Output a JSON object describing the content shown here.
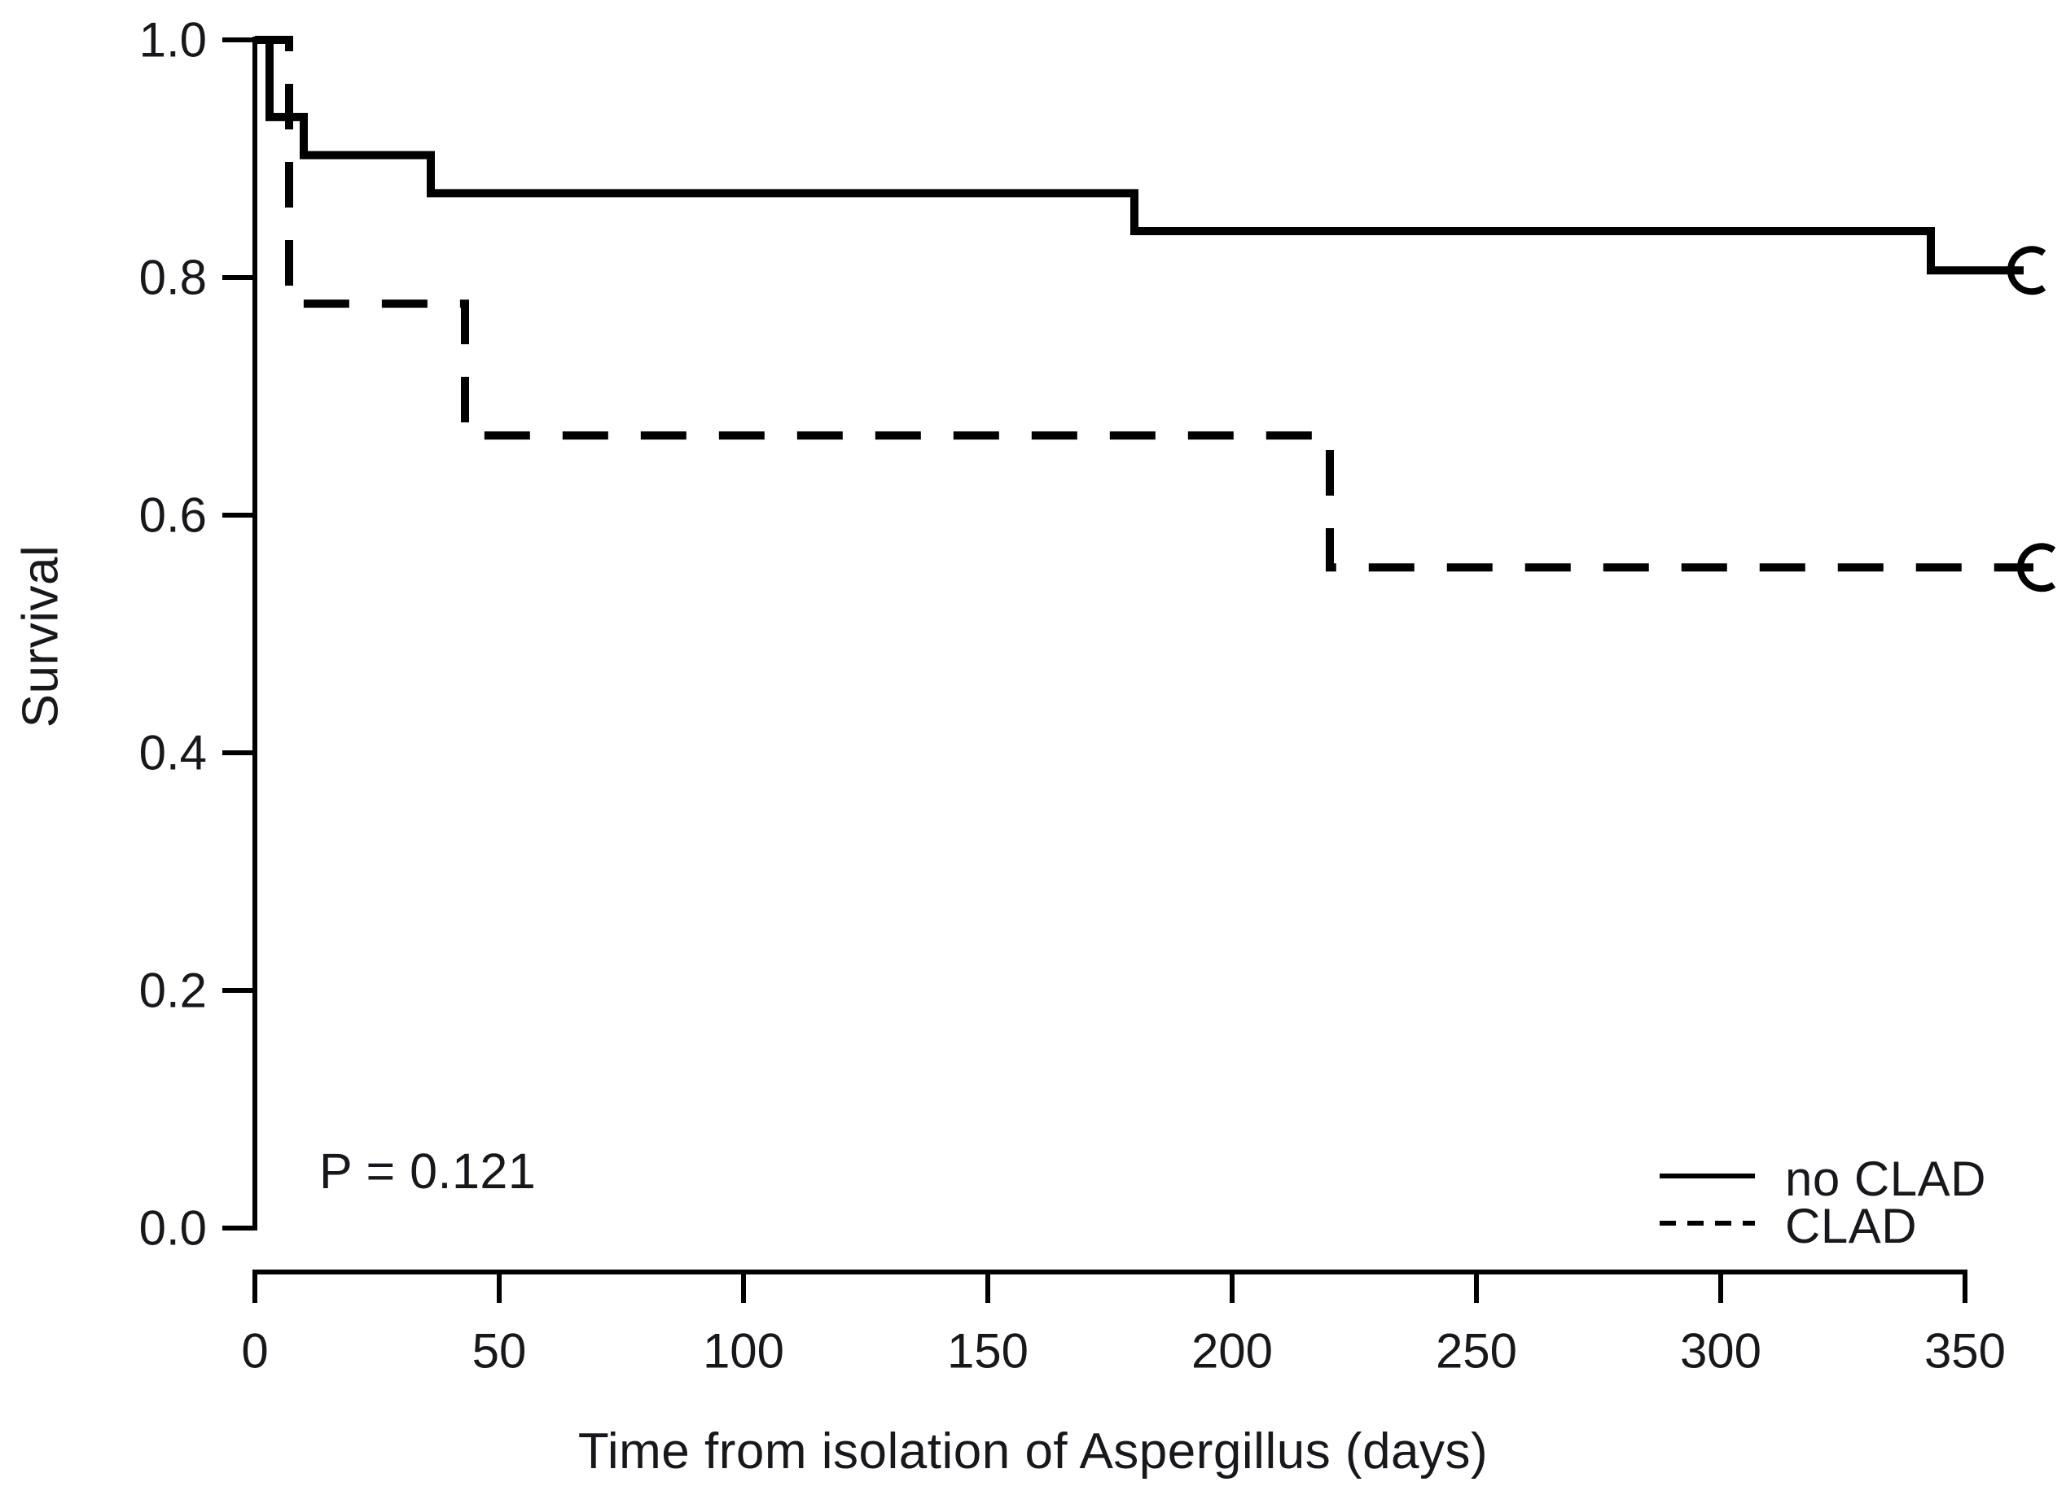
{
  "figure": {
    "background": "#ffffff",
    "line_color": "#000000",
    "text_color": "#17171c"
  },
  "annotation": {
    "p_value": "P = 0.121"
  },
  "legend": {
    "position": "bottom-right",
    "items": [
      {
        "label": "no CLAD",
        "line_style": "solid"
      },
      {
        "label": "CLAD",
        "line_style": "dashed"
      }
    ]
  },
  "chart_data": {
    "type": "line",
    "subtype": "kaplan-meier-step",
    "title": "",
    "xlabel": "Time from isolation of Aspergillus (days)",
    "ylabel": "Survival",
    "xlim": [
      0,
      350
    ],
    "ylim": [
      0.0,
      1.0
    ],
    "grid": false,
    "x_ticks": [
      {
        "value": 0,
        "label": "0"
      },
      {
        "value": 50,
        "label": "50"
      },
      {
        "value": 100,
        "label": "100"
      },
      {
        "value": 150,
        "label": "150"
      },
      {
        "value": 200,
        "label": "200"
      },
      {
        "value": 250,
        "label": "250"
      },
      {
        "value": 300,
        "label": "300"
      },
      {
        "value": 350,
        "label": "350"
      }
    ],
    "y_ticks": [
      {
        "value": 0.0,
        "label": "0.0"
      },
      {
        "value": 0.2,
        "label": "0.2"
      },
      {
        "value": 0.4,
        "label": "0.4"
      },
      {
        "value": 0.6,
        "label": "0.6"
      },
      {
        "value": 0.8,
        "label": "0.8"
      },
      {
        "value": 1.0,
        "label": "1.0"
      }
    ],
    "series": [
      {
        "name": "no CLAD",
        "line_style": "solid",
        "color": "#000000",
        "steps": [
          {
            "day": 0,
            "survival": 1.0
          },
          {
            "day": 3,
            "survival": 0.935
          },
          {
            "day": 10,
            "survival": 0.903
          },
          {
            "day": 36,
            "survival": 0.871
          },
          {
            "day": 180,
            "survival": 0.839
          },
          {
            "day": 343,
            "survival": 0.806
          }
        ],
        "end_day": 362,
        "end_mark": "open-circle-censor"
      },
      {
        "name": "CLAD",
        "line_style": "dashed",
        "color": "#000000",
        "steps": [
          {
            "day": 0,
            "survival": 1.0
          },
          {
            "day": 7,
            "survival": 0.778
          },
          {
            "day": 43,
            "survival": 0.667
          },
          {
            "day": 220,
            "survival": 0.556
          }
        ],
        "end_day": 364,
        "end_mark": "open-circle-censor"
      }
    ]
  }
}
